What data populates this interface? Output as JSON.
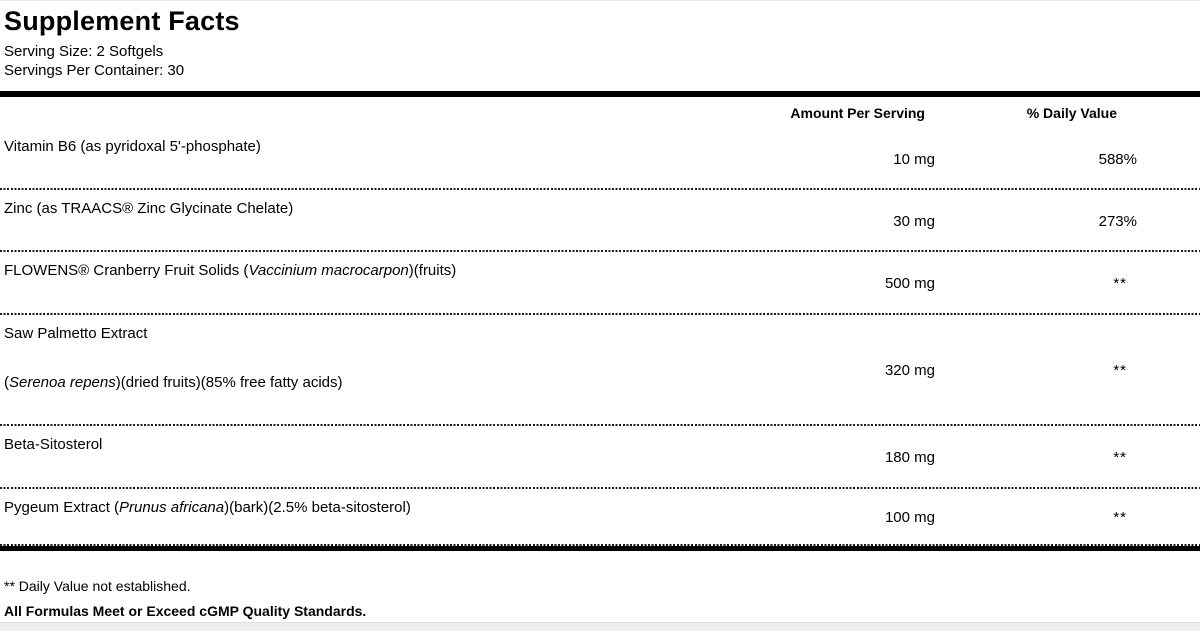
{
  "title": "Supplement Facts",
  "serving": {
    "size": "Serving Size: 2 Softgels",
    "per_container": "Servings Per Container: 30"
  },
  "columns": {
    "amount": "Amount Per Serving",
    "daily_value": "% Daily Value"
  },
  "rows": [
    {
      "name_lines": [
        [
          {
            "t": "Vitamin B6 (as pyridoxal 5'-phosphate)"
          }
        ]
      ],
      "amount": "10 mg",
      "dv": "588%"
    },
    {
      "name_lines": [
        [
          {
            "t": "Zinc (as TRAACS® Zinc Glycinate Chelate)"
          }
        ]
      ],
      "amount": "30 mg",
      "dv": "273%"
    },
    {
      "name_lines": [
        [
          {
            "t": "FLOWENS® Cranberry Fruit Solids ("
          },
          {
            "t": "Vaccinium macrocarpon",
            "i": true
          },
          {
            "t": ")(fruits)"
          }
        ]
      ],
      "amount": "500 mg",
      "dv": "**"
    },
    {
      "name_lines": [
        [
          {
            "t": "Saw Palmetto Extract"
          }
        ],
        [
          {
            "t": "("
          },
          {
            "t": "Serenoa repens",
            "i": true
          },
          {
            "t": ")(dried fruits)(85% free fatty acids)"
          }
        ]
      ],
      "amount": "320 mg",
      "dv": "**"
    },
    {
      "name_lines": [
        [
          {
            "t": "Beta-Sitosterol"
          }
        ]
      ],
      "amount": "180 mg",
      "dv": "**"
    },
    {
      "name_lines": [
        [
          {
            "t": "Pygeum Extract ("
          },
          {
            "t": "Prunus africana",
            "i": true
          },
          {
            "t": ")(bark)(2.5% beta-sitosterol)"
          }
        ]
      ],
      "amount": "100 mg",
      "dv": "**"
    }
  ],
  "footnotes": {
    "dv_note": "** Daily Value not established.",
    "quality": "All Formulas Meet or Exceed cGMP Quality Standards."
  },
  "colors": {
    "divider_bar": "#000000",
    "text": "#000000",
    "bottom_strip": "#ededed"
  }
}
